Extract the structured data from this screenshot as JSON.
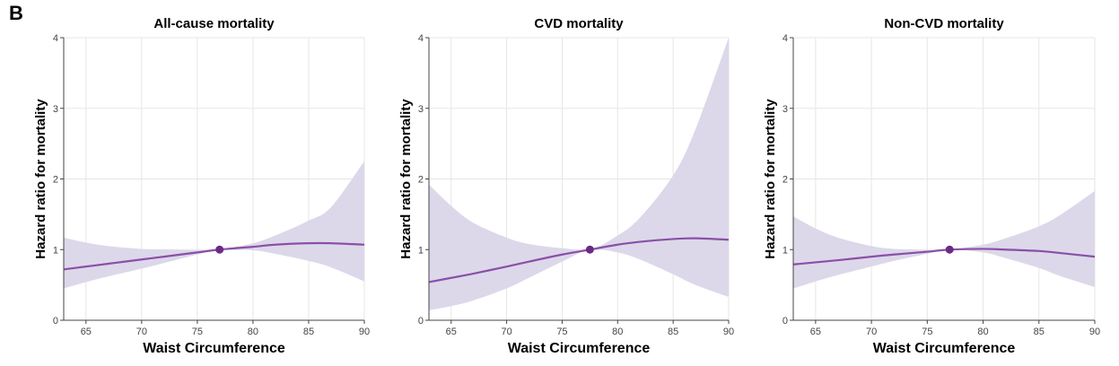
{
  "panel_label": "B",
  "colors": {
    "line": "#8b4fa8",
    "ribbon": "#dcd8ea",
    "reference_point": "#6a2a86",
    "grid": "#e6e6e6",
    "axis": "#444444"
  },
  "chart_data": [
    {
      "type": "line",
      "title": "All-cause mortality",
      "xlabel": "Waist Circumference",
      "ylabel": "Hazard ratio for mortality",
      "xlim": [
        63,
        90
      ],
      "ylim": [
        0,
        4
      ],
      "xticks": [
        65,
        70,
        75,
        80,
        85,
        90
      ],
      "yticks": [
        0,
        1,
        2,
        3,
        4
      ],
      "grid": true,
      "reference_point": {
        "x": 77,
        "y": 1.0
      },
      "series": [
        {
          "x": [
            63,
            65,
            67,
            70,
            72,
            75,
            77,
            80,
            82,
            85,
            87,
            90
          ],
          "y": [
            0.72,
            0.76,
            0.8,
            0.86,
            0.9,
            0.96,
            1.0,
            1.04,
            1.07,
            1.09,
            1.09,
            1.07
          ],
          "lower": [
            0.45,
            0.54,
            0.62,
            0.73,
            0.81,
            0.93,
            1.0,
            0.99,
            0.94,
            0.84,
            0.75,
            0.55
          ],
          "upper": [
            1.17,
            1.1,
            1.05,
            1.01,
            1.0,
            0.99,
            1.0,
            1.09,
            1.2,
            1.41,
            1.6,
            2.25
          ]
        }
      ]
    },
    {
      "type": "line",
      "title": "CVD mortality",
      "xlabel": "Waist Circumference",
      "ylabel": "Hazard ratio for mortality",
      "xlim": [
        63,
        90
      ],
      "ylim": [
        0,
        4
      ],
      "xticks": [
        65,
        70,
        75,
        80,
        85,
        90
      ],
      "yticks": [
        0,
        1,
        2,
        3,
        4
      ],
      "grid": true,
      "reference_point": {
        "x": 77.5,
        "y": 1.0
      },
      "series": [
        {
          "x": [
            63,
            65,
            67,
            70,
            72,
            75,
            77.5,
            80,
            82,
            85,
            87,
            90
          ],
          "y": [
            0.54,
            0.6,
            0.66,
            0.76,
            0.83,
            0.93,
            1.0,
            1.07,
            1.11,
            1.15,
            1.16,
            1.14
          ],
          "lower": [
            0.14,
            0.2,
            0.28,
            0.45,
            0.6,
            0.83,
            1.0,
            0.96,
            0.86,
            0.65,
            0.5,
            0.33
          ],
          "upper": [
            1.92,
            1.62,
            1.38,
            1.17,
            1.08,
            1.02,
            1.0,
            1.2,
            1.45,
            2.05,
            2.7,
            4.0
          ]
        }
      ]
    },
    {
      "type": "line",
      "title": "Non-CVD mortality",
      "xlabel": "Waist Circumference",
      "ylabel": "Hazard ratio for mortality",
      "xlim": [
        63,
        90
      ],
      "ylim": [
        0,
        4
      ],
      "xticks": [
        65,
        70,
        75,
        80,
        85,
        90
      ],
      "yticks": [
        0,
        1,
        2,
        3,
        4
      ],
      "grid": true,
      "reference_point": {
        "x": 77,
        "y": 1.0
      },
      "series": [
        {
          "x": [
            63,
            65,
            67,
            70,
            72,
            75,
            77,
            80,
            82,
            85,
            87,
            90
          ],
          "y": [
            0.79,
            0.82,
            0.85,
            0.9,
            0.93,
            0.97,
            1.0,
            1.01,
            1.0,
            0.98,
            0.95,
            0.9
          ],
          "lower": [
            0.45,
            0.55,
            0.64,
            0.76,
            0.84,
            0.94,
            1.0,
            0.96,
            0.88,
            0.74,
            0.62,
            0.47
          ],
          "upper": [
            1.47,
            1.3,
            1.17,
            1.05,
            1.01,
            0.99,
            1.0,
            1.07,
            1.16,
            1.33,
            1.5,
            1.83
          ]
        }
      ]
    }
  ]
}
